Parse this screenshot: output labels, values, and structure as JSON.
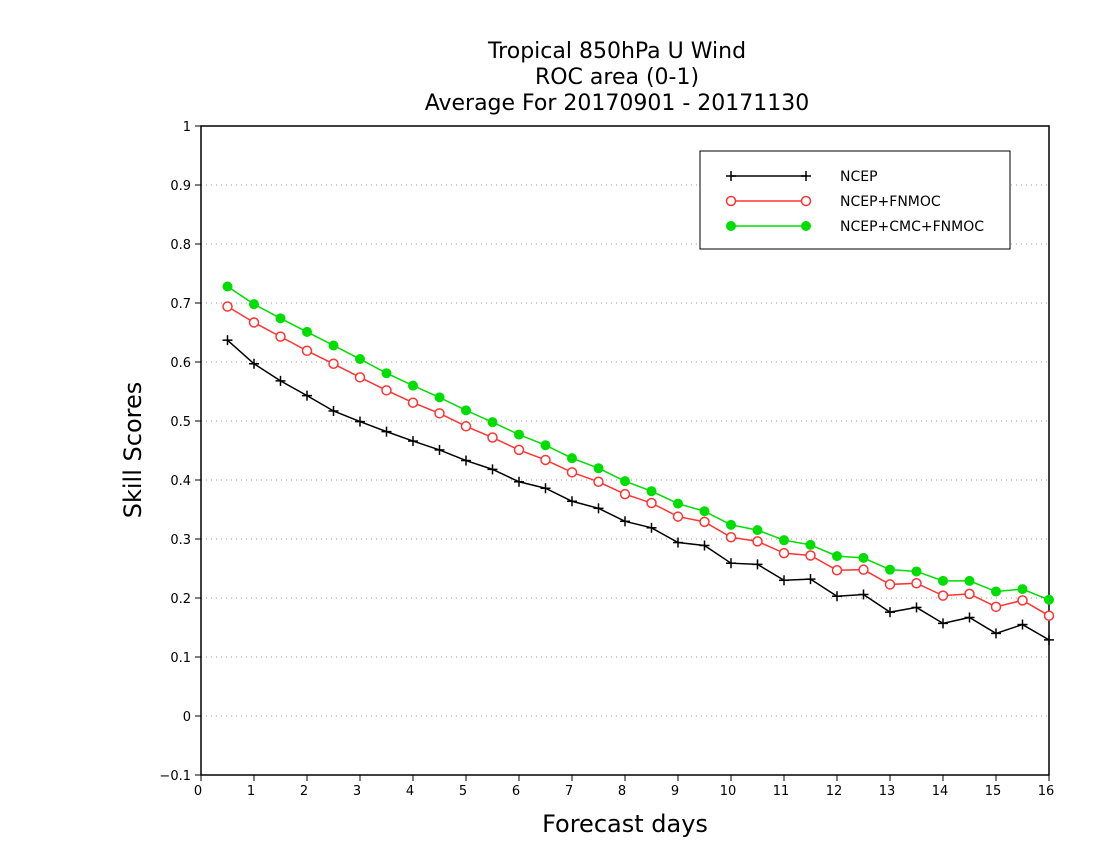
{
  "chart_data": {
    "type": "line",
    "title_lines": [
      "Tropical 850hPa U Wind",
      "ROC area (0-1)",
      "Average For 20170901 - 20171130"
    ],
    "xlabel": "Forecast days",
    "ylabel": "Skill Scores",
    "xlim": [
      0,
      16
    ],
    "ylim": [
      -0.1,
      1
    ],
    "x_ticks": [
      "0",
      "1",
      "2",
      "3",
      "4",
      "5",
      "6",
      "7",
      "8",
      "9",
      "10",
      "11",
      "12",
      "13",
      "14",
      "15",
      "16"
    ],
    "y_ticks": [
      "−0.1",
      "0",
      "0.1",
      "0.2",
      "0.3",
      "0.4",
      "0.5",
      "0.6",
      "0.7",
      "0.8",
      "0.9",
      "1"
    ],
    "grid": "horizontal dotted",
    "legend_position": "top-right",
    "x": [
      0.5,
      1,
      1.5,
      2,
      2.5,
      3,
      3.5,
      4,
      4.5,
      5,
      5.5,
      6,
      6.5,
      7,
      7.5,
      8,
      8.5,
      9,
      9.5,
      10,
      10.5,
      11,
      11.5,
      12,
      12.5,
      13,
      13.5,
      14,
      14.5,
      15,
      15.5,
      16
    ],
    "series": [
      {
        "name": "NCEP",
        "color": "#000000",
        "marker": "plus",
        "values": [
          0.637,
          0.597,
          0.568,
          0.543,
          0.517,
          0.499,
          0.482,
          0.466,
          0.451,
          0.433,
          0.418,
          0.397,
          0.386,
          0.364,
          0.352,
          0.33,
          0.319,
          0.294,
          0.289,
          0.259,
          0.257,
          0.23,
          0.232,
          0.203,
          0.206,
          0.176,
          0.184,
          0.157,
          0.167,
          0.14,
          0.155,
          0.129
        ]
      },
      {
        "name": "NCEP+FNMOC",
        "color": "#ff3333",
        "marker": "open-circle",
        "values": [
          0.694,
          0.667,
          0.643,
          0.619,
          0.597,
          0.574,
          0.552,
          0.531,
          0.513,
          0.491,
          0.472,
          0.451,
          0.434,
          0.413,
          0.397,
          0.376,
          0.361,
          0.338,
          0.329,
          0.303,
          0.296,
          0.276,
          0.272,
          0.247,
          0.248,
          0.223,
          0.225,
          0.204,
          0.207,
          0.185,
          0.196,
          0.17
        ]
      },
      {
        "name": "NCEP+CMC+FNMOC",
        "color": "#00dd00",
        "marker": "filled-circle",
        "values": [
          0.728,
          0.698,
          0.674,
          0.651,
          0.628,
          0.605,
          0.581,
          0.56,
          0.54,
          0.518,
          0.498,
          0.477,
          0.459,
          0.437,
          0.42,
          0.398,
          0.381,
          0.36,
          0.347,
          0.324,
          0.315,
          0.298,
          0.29,
          0.271,
          0.268,
          0.248,
          0.245,
          0.229,
          0.229,
          0.211,
          0.215,
          0.197
        ]
      }
    ]
  }
}
